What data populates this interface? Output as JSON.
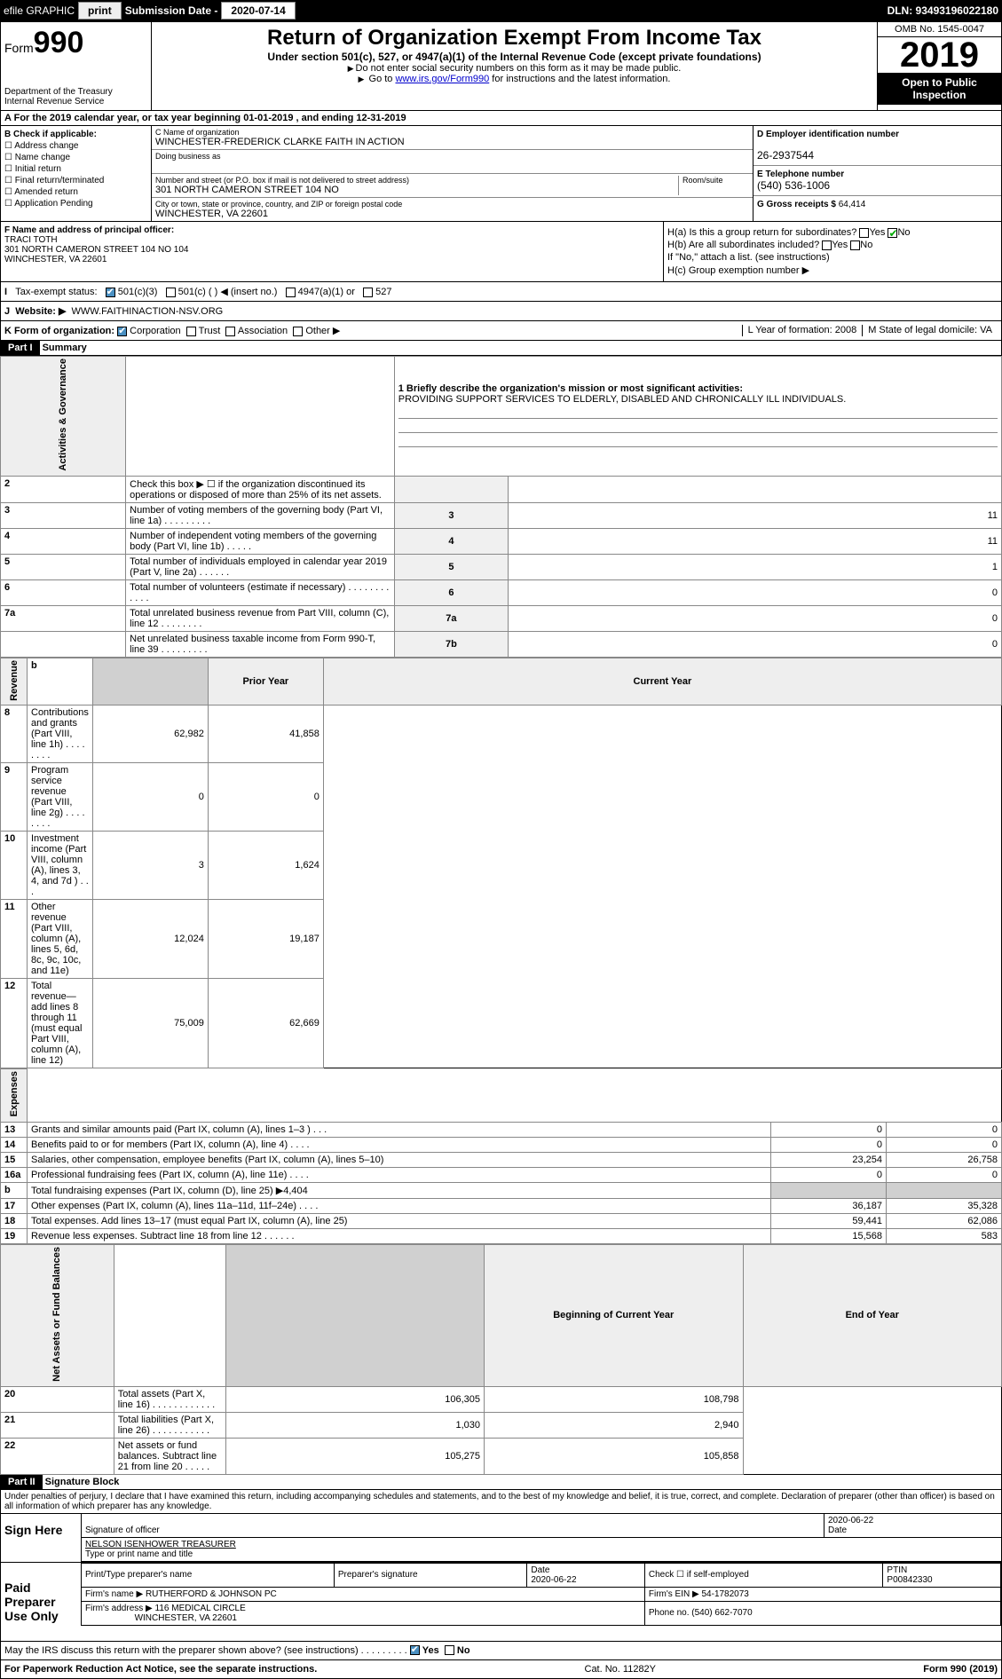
{
  "topbar": {
    "efile": "efile GRAPHIC",
    "print": "print",
    "sub_label": "Submission Date - ",
    "sub_date": "2020-07-14",
    "dln": "DLN: 93493196022180"
  },
  "header": {
    "form_prefix": "Form",
    "form_num": "990",
    "dept": "Department of the Treasury\nInternal Revenue Service",
    "title": "Return of Organization Exempt From Income Tax",
    "sub": "Under section 501(c), 527, or 4947(a)(1) of the Internal Revenue Code (except private foundations)",
    "note1": "Do not enter social security numbers on this form as it may be made public.",
    "note2_a": "Go to ",
    "note2_link": "www.irs.gov/Form990",
    "note2_b": " for instructions and the latest information.",
    "omb": "OMB No. 1545-0047",
    "year": "2019",
    "open": "Open to Public Inspection"
  },
  "rowA": "For the 2019 calendar year, or tax year beginning 01-01-2019   , and ending 12-31-2019",
  "B": {
    "label": "B Check if applicable:",
    "opts": [
      "Address change",
      "Name change",
      "Initial return",
      "Final return/terminated",
      "Amended return",
      "Application Pending"
    ]
  },
  "C": {
    "name_lbl": "C Name of organization",
    "name": "WINCHESTER-FREDERICK CLARKE FAITH IN ACTION",
    "dba_lbl": "Doing business as",
    "addr_lbl": "Number and street (or P.O. box if mail is not delivered to street address)",
    "addr": "301 NORTH CAMERON STREET 104 NO",
    "room_lbl": "Room/suite",
    "city_lbl": "City or town, state or province, country, and ZIP or foreign postal code",
    "city": "WINCHESTER, VA  22601"
  },
  "D": {
    "lbl": "D Employer identification number",
    "val": "26-2937544"
  },
  "E": {
    "lbl": "E Telephone number",
    "val": "(540) 536-1006"
  },
  "G": {
    "lbl": "G Gross receipts $",
    "val": "64,414"
  },
  "F": {
    "lbl": "F  Name and address of principal officer:",
    "name": "TRACI TOTH",
    "addr": "301 NORTH CAMERON STREET 104 NO 104",
    "city": "WINCHESTER, VA  22601"
  },
  "H": {
    "a": "H(a)  Is this a group return for subordinates?",
    "b": "H(b)  Are all subordinates included?",
    "bnote": "If \"No,\" attach a list. (see instructions)",
    "c": "H(c)  Group exemption number ▶",
    "yes": "Yes",
    "no": "No"
  },
  "I": {
    "lbl": "Tax-exempt status:",
    "opts": [
      "501(c)(3)",
      "501(c) (  ) ◀ (insert no.)",
      "4947(a)(1) or",
      "527"
    ]
  },
  "J": {
    "lbl": "Website: ▶",
    "val": "WWW.FAITHINACTION-NSV.ORG"
  },
  "K": {
    "lbl": "K Form of organization:",
    "opts": [
      "Corporation",
      "Trust",
      "Association",
      "Other ▶"
    ],
    "L": "L Year of formation: 2008",
    "M": "M State of legal domicile: VA"
  },
  "part1": {
    "hdr": "Part I",
    "title": "Summary"
  },
  "s1": {
    "q": "1  Briefly describe the organization's mission or most significant activities:",
    "a": "PROVIDING SUPPORT SERVICES TO ELDERLY, DISABLED AND CHRONICALLY ILL INDIVIDUALS."
  },
  "gov_rows": [
    {
      "n": "2",
      "t": "Check this box ▶ ☐  if the organization discontinued its operations or disposed of more than 25% of its net assets.",
      "nc": "",
      "v": ""
    },
    {
      "n": "3",
      "t": "Number of voting members of the governing body (Part VI, line 1a)   .    .    .    .    .    .    .    .    .",
      "nc": "3",
      "v": "11"
    },
    {
      "n": "4",
      "t": "Number of independent voting members of the governing body (Part VI, line 1b)   .    .    .    .    .",
      "nc": "4",
      "v": "11"
    },
    {
      "n": "5",
      "t": "Total number of individuals employed in calendar year 2019 (Part V, line 2a)   .    .    .    .    .    .",
      "nc": "5",
      "v": "1"
    },
    {
      "n": "6",
      "t": "Total number of volunteers (estimate if necessary)   .    .    .    .    .    .    .    .    .    .    .    .",
      "nc": "6",
      "v": "0"
    },
    {
      "n": "7a",
      "t": "Total unrelated business revenue from Part VIII, column (C), line 12   .    .    .    .    .    .    .    .",
      "nc": "7a",
      "v": "0"
    },
    {
      "n": "",
      "t": "Net unrelated business taxable income from Form 990-T, line 39   .    .    .    .    .    .    .    .    .",
      "nc": "7b",
      "v": "0"
    }
  ],
  "rev_hdr": {
    "b": "b",
    "py": "Prior Year",
    "cy": "Current Year"
  },
  "rev_rows": [
    {
      "n": "8",
      "t": "Contributions and grants (Part VIII, line 1h)   .    .    .    .    .    .    .    .",
      "py": "62,982",
      "cy": "41,858"
    },
    {
      "n": "9",
      "t": "Program service revenue (Part VIII, line 2g)   .    .    .    .    .    .    .    .",
      "py": "0",
      "cy": "0"
    },
    {
      "n": "10",
      "t": "Investment income (Part VIII, column (A), lines 3, 4, and 7d )   .    .    .",
      "py": "3",
      "cy": "1,624"
    },
    {
      "n": "11",
      "t": "Other revenue (Part VIII, column (A), lines 5, 6d, 8c, 9c, 10c, and 11e)",
      "py": "12,024",
      "cy": "19,187"
    },
    {
      "n": "12",
      "t": "Total revenue—add lines 8 through 11 (must equal Part VIII, column (A), line 12)",
      "py": "75,009",
      "cy": "62,669"
    }
  ],
  "exp_rows": [
    {
      "n": "13",
      "t": "Grants and similar amounts paid (Part IX, column (A), lines 1–3 )   .    .    .",
      "py": "0",
      "cy": "0"
    },
    {
      "n": "14",
      "t": "Benefits paid to or for members (Part IX, column (A), line 4)   .    .    .    .",
      "py": "0",
      "cy": "0"
    },
    {
      "n": "15",
      "t": "Salaries, other compensation, employee benefits (Part IX, column (A), lines 5–10)",
      "py": "23,254",
      "cy": "26,758"
    },
    {
      "n": "16a",
      "t": "Professional fundraising fees (Part IX, column (A), line 11e)   .    .    .    .",
      "py": "0",
      "cy": "0"
    },
    {
      "n": "b",
      "t": "Total fundraising expenses (Part IX, column (D), line 25) ▶4,404",
      "py": "",
      "cy": "",
      "shade": true
    },
    {
      "n": "17",
      "t": "Other expenses (Part IX, column (A), lines 11a–11d, 11f–24e)   .    .    .    .",
      "py": "36,187",
      "cy": "35,328"
    },
    {
      "n": "18",
      "t": "Total expenses. Add lines 13–17 (must equal Part IX, column (A), line 25)",
      "py": "59,441",
      "cy": "62,086"
    },
    {
      "n": "19",
      "t": "Revenue less expenses. Subtract line 18 from line 12   .    .    .    .    .    .",
      "py": "15,568",
      "cy": "583"
    }
  ],
  "na_hdr": {
    "py": "Beginning of Current Year",
    "cy": "End of Year"
  },
  "na_rows": [
    {
      "n": "20",
      "t": "Total assets (Part X, line 16)   .    .    .    .    .    .    .    .    .    .    .    .",
      "py": "106,305",
      "cy": "108,798"
    },
    {
      "n": "21",
      "t": "Total liabilities (Part X, line 26)   .    .    .    .    .    .    .    .    .    .    .",
      "py": "1,030",
      "cy": "2,940"
    },
    {
      "n": "22",
      "t": "Net assets or fund balances. Subtract line 21 from line 20   .    .    .    .    .",
      "py": "105,275",
      "cy": "105,858"
    }
  ],
  "part2": {
    "hdr": "Part II",
    "title": "Signature Block"
  },
  "perjury": "Under penalties of perjury, I declare that I have examined this return, including accompanying schedules and statements, and to the best of my knowledge and belief, it is true, correct, and complete. Declaration of preparer (other than officer) is based on all information of which preparer has any knowledge.",
  "sign": {
    "here": "Sign Here",
    "sig_lbl": "Signature of officer",
    "date": "2020-06-22",
    "date_lbl": "Date",
    "name": "NELSON ISENHOWER  TREASURER",
    "name_lbl": "Type or print name and title"
  },
  "paid": {
    "lbl": "Paid Preparer Use Only",
    "h": [
      "Print/Type preparer's name",
      "Preparer's signature",
      "Date",
      "",
      "PTIN"
    ],
    "date": "2020-06-22",
    "check_lbl": "Check ☐ if self-employed",
    "ptin": "P00842330",
    "firm_lbl": "Firm's name    ▶",
    "firm": "RUTHERFORD & JOHNSON PC",
    "ein_lbl": "Firm's EIN ▶",
    "ein": "54-1782073",
    "addr_lbl": "Firm's address ▶",
    "addr": "116 MEDICAL CIRCLE",
    "city": "WINCHESTER, VA  22601",
    "phone_lbl": "Phone no.",
    "phone": "(540) 662-7070"
  },
  "discuss": "May the IRS discuss this return with the preparer shown above? (see instructions)   .    .    .    .    .    .    .    .    .",
  "footer": {
    "l": "For Paperwork Reduction Act Notice, see the separate instructions.",
    "c": "Cat. No. 11282Y",
    "r": "Form 990 (2019)"
  },
  "colors": {
    "link": "#0000cc",
    "checkbox_green": "#008000",
    "header_black": "#000000"
  }
}
